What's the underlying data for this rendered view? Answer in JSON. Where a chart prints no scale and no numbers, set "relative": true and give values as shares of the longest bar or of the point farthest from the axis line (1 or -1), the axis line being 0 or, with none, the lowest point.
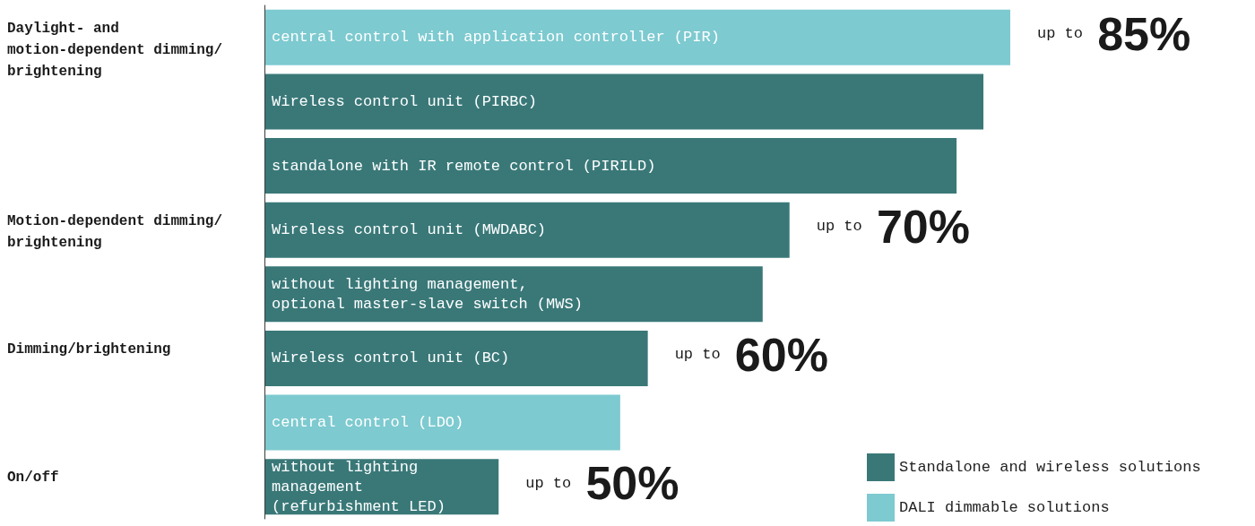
{
  "chart_data": {
    "type": "bar",
    "orientation": "horizontal",
    "relative": true,
    "legend": "bottom right",
    "categories": [
      "central control with application controller (PIR)",
      "Wireless control unit (PIRBC)",
      "standalone with IR remote control (PIRILD)",
      "Wireless control unit (MWDABC)",
      "without lighting management,\noptional master-slave switch (MWS)",
      "Wireless control unit (BC)",
      "central control (LDO)",
      "without lighting\nmanagement\n(refurbishment LED)"
    ],
    "series": [
      {
        "name": "Standalone and wireless solutions",
        "color": "#3a7878",
        "values": [
          null,
          0.964,
          0.928,
          0.704,
          0.668,
          0.514,
          null,
          0.314
        ]
      },
      {
        "name": "DALI dimmable solutions",
        "color": "#7dcad0",
        "values": [
          1,
          null,
          null,
          null,
          null,
          null,
          0.477,
          null
        ]
      }
    ],
    "annotations": [
      "Daylight- and motion-dependent dimming/ brightening",
      "Motion-dependent dimming/brightening",
      "Dimming/brightening",
      "On/off",
      {
        "text": "up to 85%",
        "x": 1,
        "y": "central control with application controller (PIR)"
      },
      {
        "text": "up to 70%",
        "x": 0.704,
        "y": "Wireless control unit (MWDABC)"
      },
      {
        "text": "up to 60%",
        "x": 0.514,
        "y": "Wireless control unit (BC)"
      },
      {
        "text": "up to 50%",
        "x": 0.314,
        "y": "without lighting\nmanagement\n(refurbishment LED)"
      }
    ]
  }
}
